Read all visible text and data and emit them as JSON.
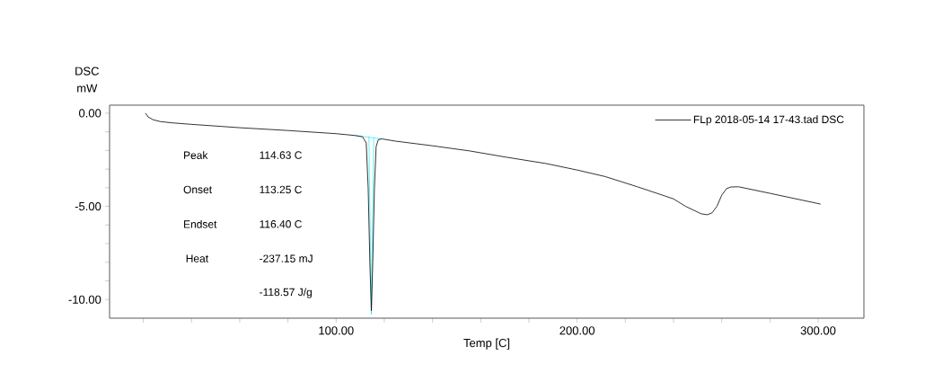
{
  "chart_data": {
    "type": "line",
    "xlabel": "Temp [C]",
    "ylabel": "DSC mW",
    "xlim": [
      6,
      319
    ],
    "ylim": [
      -11,
      0.43
    ],
    "xticks": [
      {
        "value": 20,
        "label": null
      },
      {
        "value": 40,
        "label": null
      },
      {
        "value": 60,
        "label": null
      },
      {
        "value": 80,
        "label": null
      },
      {
        "value": 100,
        "label": "100.00"
      },
      {
        "value": 120,
        "label": null
      },
      {
        "value": 140,
        "label": null
      },
      {
        "value": 160,
        "label": null
      },
      {
        "value": 180,
        "label": null
      },
      {
        "value": 200,
        "label": "200.00"
      },
      {
        "value": 220,
        "label": null
      },
      {
        "value": 240,
        "label": null
      },
      {
        "value": 260,
        "label": null
      },
      {
        "value": 280,
        "label": null
      },
      {
        "value": 300,
        "label": "300.00"
      }
    ],
    "yticks": [
      {
        "value": 0,
        "label": "0.00"
      },
      {
        "value": -1,
        "label": null
      },
      {
        "value": -2,
        "label": null
      },
      {
        "value": -3,
        "label": null
      },
      {
        "value": -4,
        "label": null
      },
      {
        "value": -5,
        "label": "-5.00"
      },
      {
        "value": -6,
        "label": null
      },
      {
        "value": -7,
        "label": null
      },
      {
        "value": -8,
        "label": null
      },
      {
        "value": -9,
        "label": null
      },
      {
        "value": -10,
        "label": "-10.00"
      }
    ],
    "legend": "top right",
    "grid": false,
    "annotations": [
      "Peak",
      "114.63 C",
      "Onset",
      "113.25 C",
      "Endset",
      "116.40 C",
      "Heat",
      "-237.15 mJ",
      "-118.57 J/g"
    ],
    "series": [
      {
        "name": "FLp 2018-05-14 17-43.tad DSC",
        "color": "#000000",
        "x": [
          20.9,
          22,
          24,
          27,
          32,
          40,
          60,
          80,
          100,
          108,
          111,
          112.5,
          113.3,
          114,
          114.63,
          115.2,
          115.9,
          116.6,
          117.5,
          119,
          124.6,
          140,
          155.6,
          170,
          187,
          200,
          211.6,
          225,
          236.6,
          240,
          245,
          251.5,
          254,
          256,
          258,
          260,
          262,
          263.8,
          267,
          280,
          298.9,
          301
        ],
        "values": [
          0,
          -0.2,
          -0.35,
          -0.45,
          -0.52,
          -0.6,
          -0.78,
          -0.93,
          -1.1,
          -1.2,
          -1.27,
          -1.6,
          -4.0,
          -8.0,
          -10.6,
          -8.0,
          -4.0,
          -1.8,
          -1.42,
          -1.38,
          -1.5,
          -1.75,
          -2.03,
          -2.35,
          -2.7,
          -3.05,
          -3.4,
          -3.95,
          -4.45,
          -4.6,
          -5.0,
          -5.4,
          -5.45,
          -5.35,
          -5.0,
          -4.4,
          -4.05,
          -3.96,
          -3.95,
          -4.3,
          -4.82,
          -4.88
        ]
      },
      {
        "color": "#00e5ee",
        "x": [
          108,
          119
        ],
        "values": [
          -1.2,
          -1.38
        ]
      },
      {
        "color": "#00e5ee",
        "x": [
          113.6,
          114.6,
          115.6
        ],
        "values": [
          -1.25,
          -10.8,
          -1.32
        ]
      }
    ]
  }
}
